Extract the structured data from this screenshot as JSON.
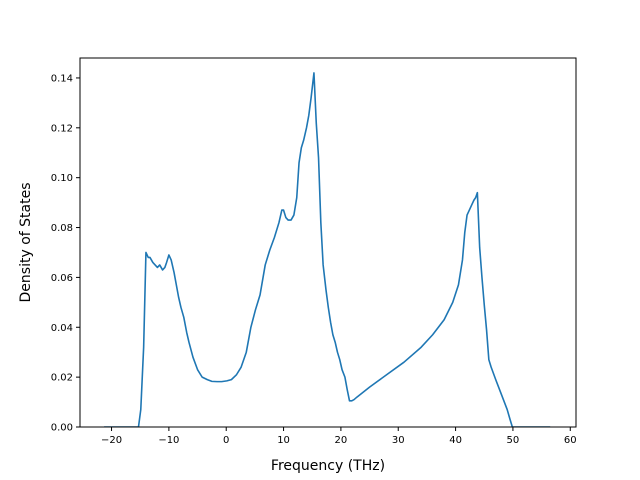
{
  "chart_data": {
    "type": "line",
    "title": "",
    "xlabel": "Frequency (THz)",
    "ylabel": "Density of States",
    "xlim": [
      -25.5,
      61
    ],
    "ylim": [
      0.0,
      0.148
    ],
    "xticks": [
      -20,
      -10,
      0,
      10,
      20,
      30,
      40,
      50,
      60
    ],
    "yticks": [
      0.0,
      0.02,
      0.04,
      0.06,
      0.08,
      0.1,
      0.12,
      0.14
    ],
    "xtick_labels": [
      "−20",
      "−10",
      "0",
      "10",
      "20",
      "30",
      "40",
      "50",
      "60"
    ],
    "ytick_labels": [
      "0.00",
      "0.02",
      "0.04",
      "0.06",
      "0.08",
      "0.10",
      "0.12",
      "0.14"
    ],
    "grid": false,
    "legend": "none",
    "series": [
      {
        "color": "#1f77b4",
        "x": [
          -21.3,
          -15.3,
          -14.9,
          -14.4,
          -14.0,
          -13.6,
          -13.3,
          -12.8,
          -12.4,
          -12.0,
          -11.6,
          -11.1,
          -10.7,
          -10.4,
          -10.0,
          -9.6,
          -9.1,
          -8.7,
          -8.3,
          -7.9,
          -7.4,
          -6.9,
          -6.5,
          -5.8,
          -5.0,
          -4.2,
          -3.3,
          -2.5,
          -1.6,
          -0.8,
          0.1,
          0.9,
          1.8,
          2.6,
          3.5,
          4.3,
          5.1,
          5.9,
          6.8,
          7.6,
          8.4,
          9.2,
          9.7,
          10.0,
          10.4,
          10.8,
          11.3,
          11.8,
          12.3,
          12.7,
          13.1,
          13.5,
          14.0,
          14.4,
          14.8,
          15.3,
          15.7,
          16.1,
          16.5,
          16.9,
          17.4,
          17.8,
          18.2,
          18.6,
          19.0,
          19.4,
          19.8,
          20.2,
          20.7,
          21.1,
          21.5,
          21.9,
          22.3,
          22.8,
          25.0,
          28.0,
          31.0,
          34.0,
          36.0,
          38.0,
          39.5,
          40.5,
          41.2,
          41.6,
          42.0,
          42.4,
          42.8,
          43.2,
          43.5,
          43.8,
          44.2,
          44.6,
          45.0,
          45.4,
          45.8,
          46.2,
          47.0,
          48.0,
          49.0,
          49.5,
          49.9,
          50.5,
          56.5
        ],
        "y": [
          0.0,
          0.0,
          0.007,
          0.032,
          0.07,
          0.068,
          0.068,
          0.066,
          0.065,
          0.064,
          0.065,
          0.063,
          0.064,
          0.066,
          0.069,
          0.067,
          0.062,
          0.057,
          0.052,
          0.048,
          0.044,
          0.038,
          0.034,
          0.028,
          0.023,
          0.02,
          0.019,
          0.0183,
          0.0182,
          0.0182,
          0.0185,
          0.019,
          0.021,
          0.024,
          0.03,
          0.04,
          0.047,
          0.053,
          0.065,
          0.071,
          0.076,
          0.082,
          0.087,
          0.087,
          0.084,
          0.083,
          0.083,
          0.085,
          0.092,
          0.106,
          0.112,
          0.115,
          0.12,
          0.125,
          0.132,
          0.142,
          0.122,
          0.108,
          0.082,
          0.065,
          0.055,
          0.048,
          0.042,
          0.037,
          0.034,
          0.03,
          0.027,
          0.023,
          0.02,
          0.015,
          0.0105,
          0.0105,
          0.011,
          0.012,
          0.016,
          0.021,
          0.026,
          0.032,
          0.037,
          0.043,
          0.05,
          0.057,
          0.067,
          0.078,
          0.085,
          0.087,
          0.089,
          0.091,
          0.092,
          0.094,
          0.072,
          0.06,
          0.049,
          0.039,
          0.027,
          0.024,
          0.019,
          0.013,
          0.007,
          0.003,
          0.0,
          0.0,
          0.0
        ]
      }
    ]
  }
}
